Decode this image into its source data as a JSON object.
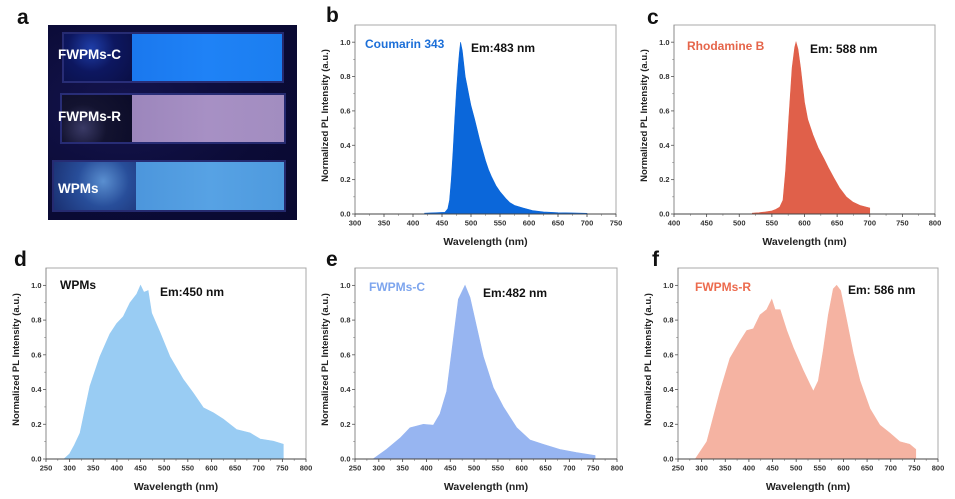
{
  "panels": {
    "letters": [
      "a",
      "b",
      "c",
      "d",
      "e",
      "f"
    ],
    "a": {
      "type": "photo",
      "samples": [
        "FWPMs-C",
        "FWPMs-R",
        "WPMs"
      ],
      "sample_colors": [
        "#1f82f6",
        "#a790c4",
        "#57a2e4"
      ]
    }
  },
  "annotations": [
    {
      "sample": "Coumarin 343",
      "sample_color": "#1c6fd8",
      "em": "Em:483 nm"
    },
    {
      "sample": "Rhodamine B",
      "sample_color": "#e5654a",
      "em": "Em: 588 nm"
    },
    {
      "sample": "WPMs",
      "sample_color": "#111111",
      "em": "Em:450 nm"
    },
    {
      "sample": "FWPMs-C",
      "sample_color": "#7da5ee",
      "em": "Em:482 nm"
    },
    {
      "sample": "FWPMs-R",
      "sample_color": "#ec6b4e",
      "em": "Em: 586 nm"
    }
  ],
  "chart_data": [
    {
      "type": "area",
      "panel": "b",
      "title": "Coumarin 343",
      "annotation": "Em:483 nm",
      "xlabel": "Wavelength (nm)",
      "ylabel": "Normalized PL Intensity (a.u.)",
      "xlim": [
        300,
        750
      ],
      "ylim": [
        0,
        1.1
      ],
      "xticks": [
        300,
        350,
        400,
        450,
        500,
        550,
        600,
        650,
        700,
        750
      ],
      "yticks": [
        "0.0",
        "0.2",
        "0.4",
        "0.6",
        "0.8",
        "1.0"
      ],
      "grid": false,
      "color": "#0b67da",
      "x": [
        420,
        440,
        455,
        460,
        463,
        466,
        469,
        472,
        475,
        478,
        480,
        482,
        485,
        488,
        490,
        493,
        497,
        500,
        506,
        510,
        515,
        520,
        525,
        530,
        535,
        543,
        550,
        560,
        567,
        575,
        590,
        606,
        625,
        650,
        675,
        700
      ],
      "y": [
        0.005,
        0.008,
        0.01,
        0.03,
        0.08,
        0.2,
        0.36,
        0.55,
        0.72,
        0.86,
        0.94,
        1.0,
        0.95,
        0.86,
        0.8,
        0.75,
        0.68,
        0.63,
        0.555,
        0.5,
        0.43,
        0.37,
        0.31,
        0.26,
        0.22,
        0.165,
        0.13,
        0.09,
        0.066,
        0.05,
        0.035,
        0.02,
        0.012,
        0.008,
        0.006,
        0.004
      ]
    },
    {
      "type": "area",
      "panel": "c",
      "title": "Rhodamine B",
      "annotation": "Em: 588 nm",
      "xlabel": "Wavelength (nm)",
      "ylabel": "Normalized PL Intensity (a.u.)",
      "xlim": [
        400,
        800
      ],
      "ylim": [
        0,
        1.1
      ],
      "xticks": [
        400,
        450,
        500,
        550,
        600,
        650,
        700,
        750,
        800
      ],
      "yticks": [
        "0.0",
        "0.2",
        "0.4",
        "0.6",
        "0.8",
        "1.0"
      ],
      "grid": false,
      "color": "#e0604a",
      "x": [
        520,
        530,
        540,
        550,
        555,
        562,
        567,
        571,
        576,
        581,
        585,
        587,
        590,
        594,
        597,
        600,
        605,
        613,
        621,
        630,
        636.5,
        645,
        654,
        664,
        674,
        685,
        695,
        700
      ],
      "y": [
        0.005,
        0.008,
        0.012,
        0.018,
        0.025,
        0.04,
        0.08,
        0.25,
        0.56,
        0.85,
        0.97,
        1.0,
        0.96,
        0.85,
        0.75,
        0.65,
        0.55,
        0.46,
        0.385,
        0.32,
        0.27,
        0.21,
        0.15,
        0.1,
        0.07,
        0.05,
        0.04,
        0.035
      ]
    },
    {
      "type": "area",
      "panel": "d",
      "title": "WPMs",
      "annotation": "Em:450 nm",
      "xlabel": "Wavelength (nm)",
      "ylabel": "Normalized PL Intensity (a.u.)",
      "xlim": [
        250,
        800
      ],
      "ylim": [
        0,
        1.1
      ],
      "xticks": [
        250,
        300,
        350,
        400,
        450,
        500,
        550,
        600,
        650,
        700,
        750,
        800
      ],
      "yticks": [
        "0.0",
        "0.2",
        "0.4",
        "0.6",
        "0.8",
        "1.0"
      ],
      "grid": false,
      "color": "#99ccf3",
      "x": [
        288,
        300,
        310,
        322,
        332,
        343,
        364,
        385,
        399.5,
        413.5,
        427.7,
        442,
        450,
        457,
        466,
        473.5,
        491,
        512,
        540,
        561.6,
        583,
        604,
        625,
        653,
        681.6,
        703,
        731,
        752
      ],
      "y": [
        0.0,
        0.03,
        0.08,
        0.15,
        0.28,
        0.42,
        0.59,
        0.72,
        0.78,
        0.82,
        0.9,
        0.95,
        1.0,
        0.96,
        0.97,
        0.84,
        0.73,
        0.59,
        0.46,
        0.38,
        0.295,
        0.266,
        0.23,
        0.17,
        0.15,
        0.115,
        0.103,
        0.085
      ]
    },
    {
      "type": "area",
      "panel": "e",
      "title": "FWPMs-C",
      "annotation": "Em:482 nm",
      "xlabel": "Wavelength (nm)",
      "ylabel": "Normalized PL Intensity (a.u.)",
      "xlim": [
        250,
        800
      ],
      "ylim": [
        0,
        1.1
      ],
      "xticks": [
        250,
        300,
        350,
        400,
        450,
        500,
        550,
        600,
        650,
        700,
        750,
        800
      ],
      "yticks": [
        "0.0",
        "0.2",
        "0.4",
        "0.6",
        "0.8",
        "1.0"
      ],
      "grid": false,
      "color": "#97b5f1",
      "x": [
        288,
        316.5,
        344.5,
        365.5,
        393.4,
        414.5,
        428.4,
        442.5,
        456.4,
        467,
        481,
        491.4,
        505.4,
        519.4,
        540.4,
        561.4,
        589.5,
        617,
        645,
        680,
        715,
        754
      ],
      "y": [
        0.0,
        0.056,
        0.12,
        0.18,
        0.2,
        0.195,
        0.26,
        0.39,
        0.69,
        0.92,
        1.0,
        0.93,
        0.76,
        0.59,
        0.41,
        0.3,
        0.18,
        0.11,
        0.085,
        0.055,
        0.037,
        0.02
      ]
    },
    {
      "type": "area",
      "panel": "f",
      "title": "FWPMs-R",
      "annotation": "Em: 586 nm",
      "xlabel": "Wavelength (nm)",
      "ylabel": "Normalized PL Intensity (a.u.)",
      "xlim": [
        250,
        800
      ],
      "ylim": [
        0,
        1.1
      ],
      "xticks": [
        250,
        300,
        350,
        400,
        450,
        500,
        550,
        600,
        650,
        700,
        750,
        800
      ],
      "yticks": [
        "0.0",
        "0.2",
        "0.4",
        "0.6",
        "0.8",
        "1.0"
      ],
      "grid": false,
      "color": "#f5b3a2",
      "x": [
        286.5,
        311,
        339,
        360,
        381.5,
        395.5,
        409.5,
        423.7,
        437.7,
        448.4,
        455.4,
        466,
        480,
        494,
        515,
        529,
        536.3,
        546.8,
        557,
        568,
        578.5,
        585.6,
        594,
        606.7,
        620.6,
        635,
        656,
        677,
        698,
        719,
        740,
        753
      ],
      "y": [
        0.0,
        0.1,
        0.39,
        0.58,
        0.68,
        0.74,
        0.75,
        0.83,
        0.86,
        0.92,
        0.86,
        0.86,
        0.74,
        0.64,
        0.51,
        0.43,
        0.39,
        0.45,
        0.62,
        0.83,
        0.98,
        1.0,
        0.97,
        0.8,
        0.61,
        0.45,
        0.29,
        0.195,
        0.15,
        0.1,
        0.085,
        0.055
      ]
    }
  ]
}
